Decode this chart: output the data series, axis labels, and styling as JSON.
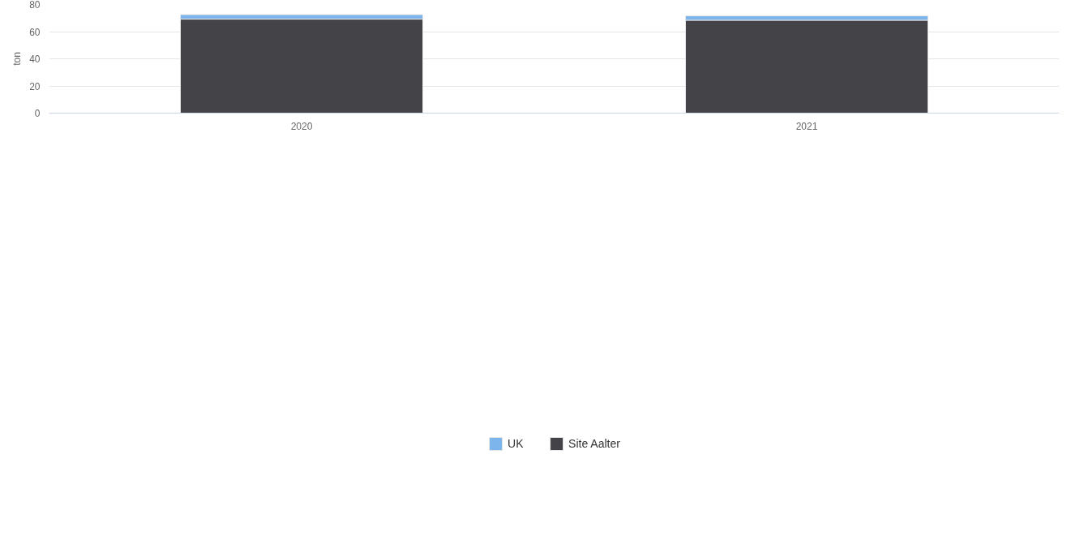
{
  "chart_data": {
    "type": "bar",
    "stacked": true,
    "ylabel": "ton",
    "categories": [
      "2020",
      "2021"
    ],
    "series": [
      {
        "name": "Site Aalter",
        "color": "#434348",
        "values": [
          69.2,
          68.4
        ]
      },
      {
        "name": "UK",
        "color": "#7cb5ec",
        "values": [
          3.3,
          3.2
        ]
      }
    ],
    "ylim": [
      0,
      80
    ],
    "yticks": [
      0,
      20,
      40,
      60,
      80
    ],
    "grid": "y",
    "legend": "bottom"
  }
}
